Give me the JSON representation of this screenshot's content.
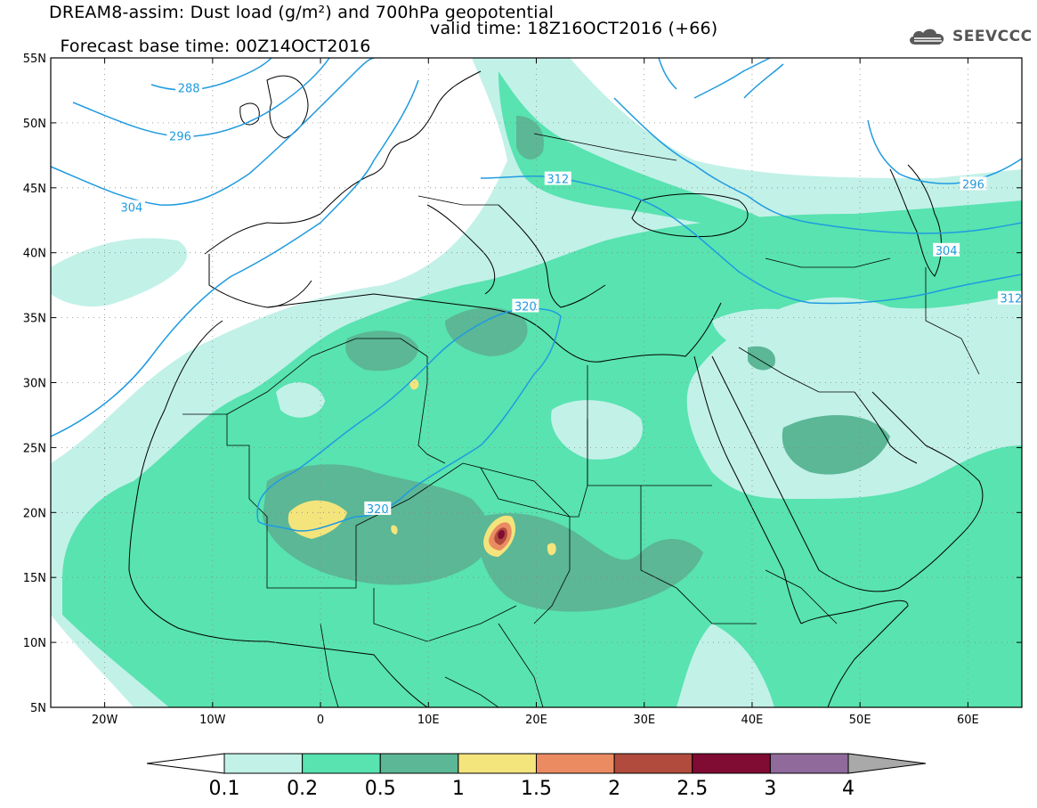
{
  "header": {
    "title_line1": "DREAM8-assim: Dust load (g/m²) and 700hPa geopotential",
    "base_time": "Forecast base time: 00Z14OCT2016",
    "valid_time": "valid time: 18Z16OCT2016 (+66)",
    "logo_text": "SEEVCCC",
    "logo_icon": "cloud-icon"
  },
  "map": {
    "lon_range": [
      -25,
      65
    ],
    "lat_range": [
      5,
      55
    ],
    "lat_ticks": [
      {
        "lat": 55,
        "label": "55N"
      },
      {
        "lat": 50,
        "label": "50N"
      },
      {
        "lat": 45,
        "label": "45N"
      },
      {
        "lat": 40,
        "label": "40N"
      },
      {
        "lat": 35,
        "label": "35N"
      },
      {
        "lat": 30,
        "label": "30N"
      },
      {
        "lat": 25,
        "label": "25N"
      },
      {
        "lat": 20,
        "label": "20N"
      },
      {
        "lat": 15,
        "label": "15N"
      },
      {
        "lat": 10,
        "label": "10N"
      },
      {
        "lat": 5,
        "label": "5N"
      }
    ],
    "lon_ticks": [
      {
        "lon": -20,
        "label": "20W"
      },
      {
        "lon": -10,
        "label": "10W"
      },
      {
        "lon": 0,
        "label": "0"
      },
      {
        "lon": 10,
        "label": "10E"
      },
      {
        "lon": 20,
        "label": "20E"
      },
      {
        "lon": 30,
        "label": "30E"
      },
      {
        "lon": 40,
        "label": "40E"
      },
      {
        "lon": 50,
        "label": "50E"
      },
      {
        "lon": 60,
        "label": "60E"
      }
    ],
    "gridlines": true,
    "contour_labels": [
      {
        "label": "288",
        "lon": -12.2,
        "lat": 52.7
      },
      {
        "label": "296",
        "lon": -13.0,
        "lat": 49.0
      },
      {
        "label": "304",
        "lon": -17.5,
        "lat": 43.5
      },
      {
        "label": "312",
        "lon": 22.0,
        "lat": 45.7
      },
      {
        "label": "296",
        "lon": 60.5,
        "lat": 45.3
      },
      {
        "label": "304",
        "lon": 58.0,
        "lat": 40.2
      },
      {
        "label": "312",
        "lon": 64.0,
        "lat": 36.5
      },
      {
        "label": "320",
        "lon": 19.0,
        "lat": 35.9
      },
      {
        "label": "320",
        "lon": 5.3,
        "lat": 20.3
      }
    ]
  },
  "colorbar": {
    "colors": [
      "#c2f1e8",
      "#58e3b0",
      "#5bb796",
      "#f4e47c",
      "#eb8b62",
      "#b04b3d",
      "#800b33",
      "#8f6a9b"
    ],
    "labels": [
      "0.1",
      "0.2",
      "0.5",
      "1",
      "1.5",
      "2",
      "2.5",
      "3",
      "4"
    ],
    "under_color": "#ffffff",
    "over_color": "#a9a9a9"
  }
}
